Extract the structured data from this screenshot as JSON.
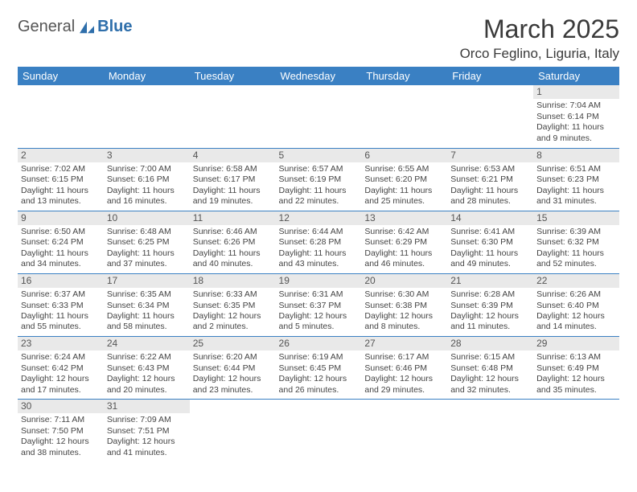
{
  "logo": {
    "part1": "General",
    "part2": "Blue"
  },
  "title": "March 2025",
  "location": "Orco Feglino, Liguria, Italy",
  "colors": {
    "header_bg": "#3a80c3",
    "header_fg": "#ffffff",
    "border": "#3a80c3",
    "daynum_bg": "#e9e9e9"
  },
  "day_headers": [
    "Sunday",
    "Monday",
    "Tuesday",
    "Wednesday",
    "Thursday",
    "Friday",
    "Saturday"
  ],
  "weeks": [
    [
      null,
      null,
      null,
      null,
      null,
      null,
      {
        "n": "1",
        "sr": "7:04 AM",
        "ss": "6:14 PM",
        "dl": "11 hours and 9 minutes."
      }
    ],
    [
      {
        "n": "2",
        "sr": "7:02 AM",
        "ss": "6:15 PM",
        "dl": "11 hours and 13 minutes."
      },
      {
        "n": "3",
        "sr": "7:00 AM",
        "ss": "6:16 PM",
        "dl": "11 hours and 16 minutes."
      },
      {
        "n": "4",
        "sr": "6:58 AM",
        "ss": "6:17 PM",
        "dl": "11 hours and 19 minutes."
      },
      {
        "n": "5",
        "sr": "6:57 AM",
        "ss": "6:19 PM",
        "dl": "11 hours and 22 minutes."
      },
      {
        "n": "6",
        "sr": "6:55 AM",
        "ss": "6:20 PM",
        "dl": "11 hours and 25 minutes."
      },
      {
        "n": "7",
        "sr": "6:53 AM",
        "ss": "6:21 PM",
        "dl": "11 hours and 28 minutes."
      },
      {
        "n": "8",
        "sr": "6:51 AM",
        "ss": "6:23 PM",
        "dl": "11 hours and 31 minutes."
      }
    ],
    [
      {
        "n": "9",
        "sr": "6:50 AM",
        "ss": "6:24 PM",
        "dl": "11 hours and 34 minutes."
      },
      {
        "n": "10",
        "sr": "6:48 AM",
        "ss": "6:25 PM",
        "dl": "11 hours and 37 minutes."
      },
      {
        "n": "11",
        "sr": "6:46 AM",
        "ss": "6:26 PM",
        "dl": "11 hours and 40 minutes."
      },
      {
        "n": "12",
        "sr": "6:44 AM",
        "ss": "6:28 PM",
        "dl": "11 hours and 43 minutes."
      },
      {
        "n": "13",
        "sr": "6:42 AM",
        "ss": "6:29 PM",
        "dl": "11 hours and 46 minutes."
      },
      {
        "n": "14",
        "sr": "6:41 AM",
        "ss": "6:30 PM",
        "dl": "11 hours and 49 minutes."
      },
      {
        "n": "15",
        "sr": "6:39 AM",
        "ss": "6:32 PM",
        "dl": "11 hours and 52 minutes."
      }
    ],
    [
      {
        "n": "16",
        "sr": "6:37 AM",
        "ss": "6:33 PM",
        "dl": "11 hours and 55 minutes."
      },
      {
        "n": "17",
        "sr": "6:35 AM",
        "ss": "6:34 PM",
        "dl": "11 hours and 58 minutes."
      },
      {
        "n": "18",
        "sr": "6:33 AM",
        "ss": "6:35 PM",
        "dl": "12 hours and 2 minutes."
      },
      {
        "n": "19",
        "sr": "6:31 AM",
        "ss": "6:37 PM",
        "dl": "12 hours and 5 minutes."
      },
      {
        "n": "20",
        "sr": "6:30 AM",
        "ss": "6:38 PM",
        "dl": "12 hours and 8 minutes."
      },
      {
        "n": "21",
        "sr": "6:28 AM",
        "ss": "6:39 PM",
        "dl": "12 hours and 11 minutes."
      },
      {
        "n": "22",
        "sr": "6:26 AM",
        "ss": "6:40 PM",
        "dl": "12 hours and 14 minutes."
      }
    ],
    [
      {
        "n": "23",
        "sr": "6:24 AM",
        "ss": "6:42 PM",
        "dl": "12 hours and 17 minutes."
      },
      {
        "n": "24",
        "sr": "6:22 AM",
        "ss": "6:43 PM",
        "dl": "12 hours and 20 minutes."
      },
      {
        "n": "25",
        "sr": "6:20 AM",
        "ss": "6:44 PM",
        "dl": "12 hours and 23 minutes."
      },
      {
        "n": "26",
        "sr": "6:19 AM",
        "ss": "6:45 PM",
        "dl": "12 hours and 26 minutes."
      },
      {
        "n": "27",
        "sr": "6:17 AM",
        "ss": "6:46 PM",
        "dl": "12 hours and 29 minutes."
      },
      {
        "n": "28",
        "sr": "6:15 AM",
        "ss": "6:48 PM",
        "dl": "12 hours and 32 minutes."
      },
      {
        "n": "29",
        "sr": "6:13 AM",
        "ss": "6:49 PM",
        "dl": "12 hours and 35 minutes."
      }
    ],
    [
      {
        "n": "30",
        "sr": "7:11 AM",
        "ss": "7:50 PM",
        "dl": "12 hours and 38 minutes."
      },
      {
        "n": "31",
        "sr": "7:09 AM",
        "ss": "7:51 PM",
        "dl": "12 hours and 41 minutes."
      },
      null,
      null,
      null,
      null,
      null
    ]
  ],
  "labels": {
    "sunrise": "Sunrise:",
    "sunset": "Sunset:",
    "daylight": "Daylight:"
  }
}
